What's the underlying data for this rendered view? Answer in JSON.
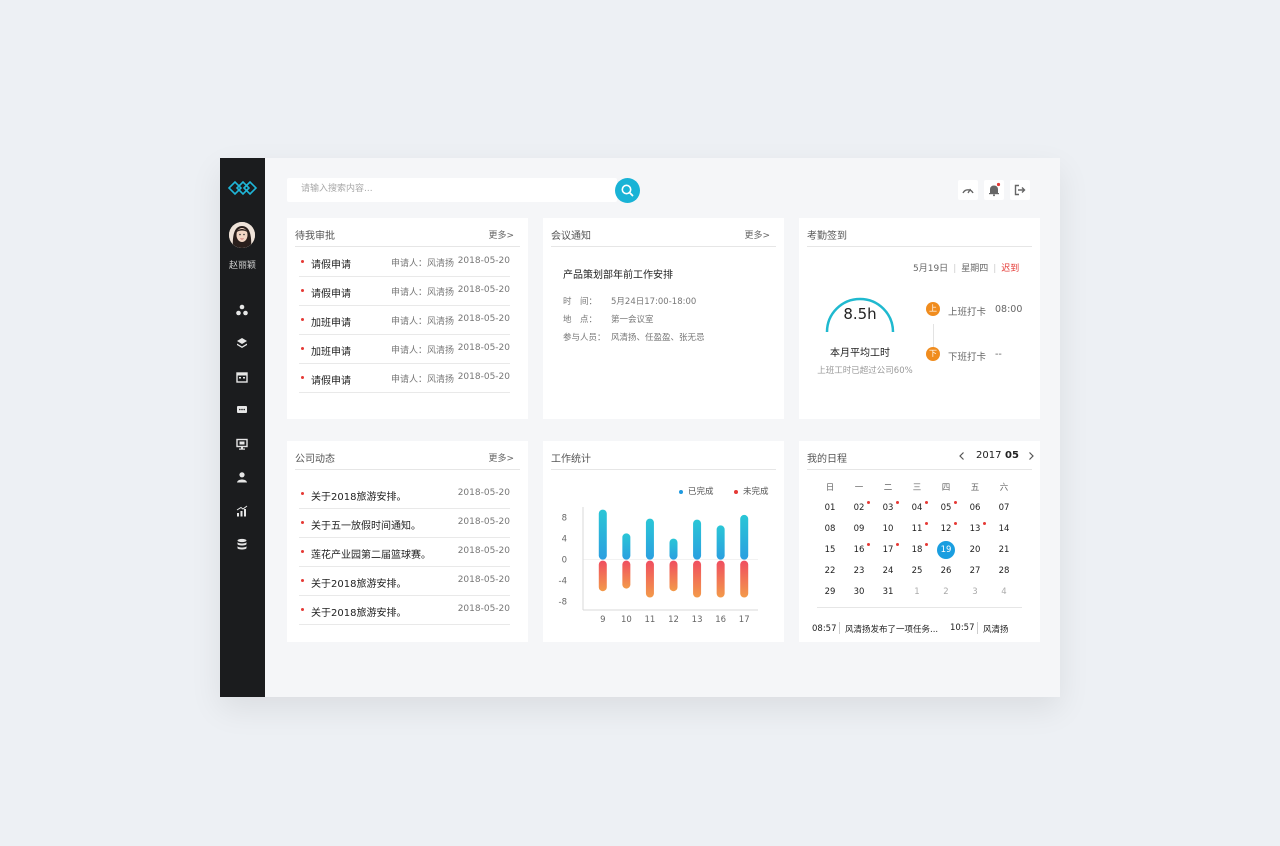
{
  "app": {
    "user_name": "赵丽颖"
  },
  "search": {
    "placeholder": "请输入搜索内容..."
  },
  "colors": {
    "accent": "#19b3d6",
    "sidebar": "#1b1c1e",
    "completed_series": "#2cc3d8",
    "incomplete_series": "#f0645a",
    "alert": "#e53935",
    "orange": "#f08c1e"
  },
  "sidebar": {
    "items": [
      {
        "icon": "cluster-icon"
      },
      {
        "icon": "layers-icon"
      },
      {
        "icon": "calendar-icon"
      },
      {
        "icon": "message-icon"
      },
      {
        "icon": "monitor-icon"
      },
      {
        "icon": "user-icon"
      },
      {
        "icon": "bar-chart-icon"
      },
      {
        "icon": "database-icon"
      }
    ]
  },
  "toolbar": {
    "icons": [
      "dashboard-icon",
      "bell-icon",
      "logout-icon"
    ]
  },
  "approvals": {
    "title": "待我审批",
    "more": "更多>",
    "items": [
      {
        "title": "请假申请",
        "applicant": "申请人：风清扬",
        "date": "2018-05-20"
      },
      {
        "title": "请假申请",
        "applicant": "申请人：风清扬",
        "date": "2018-05-20"
      },
      {
        "title": "加班申请",
        "applicant": "申请人：风清扬",
        "date": "2018-05-20"
      },
      {
        "title": "加班申请",
        "applicant": "申请人：风清扬",
        "date": "2018-05-20"
      },
      {
        "title": "请假申请",
        "applicant": "申请人：风清扬",
        "date": "2018-05-20"
      }
    ]
  },
  "meeting": {
    "title": "会议通知",
    "more": "更多>",
    "name": "产品策划部年前工作安排",
    "time_label": "时　间：",
    "time": "5月24日17:00-18:00",
    "place_label": "地　点：",
    "place": "第一会议室",
    "people_label": "参与人员：",
    "people": "风清扬、任盈盈、张无忌"
  },
  "attendance": {
    "title": "考勤签到",
    "date": "5月19日",
    "weekday": "星期四",
    "status": "迟到",
    "hours": "8.5h",
    "hours_label": "本月平均工时",
    "note": "上班工时已超过公司60%",
    "checkin_badge": "上",
    "checkin_label": "上班打卡",
    "checkin_time": "08:00",
    "checkout_badge": "下",
    "checkout_label": "下班打卡",
    "checkout_time": "--"
  },
  "news": {
    "title": "公司动态",
    "more": "更多>",
    "items": [
      {
        "title": "关于2018旅游安排。",
        "date": "2018-05-20"
      },
      {
        "title": "关于五一放假时间通知。",
        "date": "2018-05-20"
      },
      {
        "title": "莲花产业园第二届篮球赛。",
        "date": "2018-05-20"
      },
      {
        "title": "关于2018旅游安排。",
        "date": "2018-05-20"
      },
      {
        "title": "关于2018旅游安排。",
        "date": "2018-05-20"
      }
    ]
  },
  "work_stats": {
    "title": "工作统计"
  },
  "chart_data": {
    "type": "bar",
    "categories": [
      "9",
      "10",
      "11",
      "12",
      "13",
      "16",
      "17"
    ],
    "series": [
      {
        "name": "已完成",
        "values": [
          9.5,
          5,
          7.8,
          4,
          7.6,
          6.5,
          8.5
        ]
      },
      {
        "name": "未完成",
        "values": [
          -6,
          -5.5,
          -7.2,
          -6,
          -7.2,
          -7.2,
          -7.2
        ]
      }
    ],
    "yticks": [
      "8",
      "4",
      "0",
      "-4",
      "-8"
    ],
    "ylim": [
      -9,
      10
    ],
    "legend_position": "top-right"
  },
  "schedule": {
    "title": "我的日程",
    "year": "2017",
    "month": "05",
    "weekdays": [
      "日",
      "一",
      "二",
      "三",
      "四",
      "五",
      "六"
    ],
    "days": [
      {
        "d": "01"
      },
      {
        "d": "02",
        "mark": true
      },
      {
        "d": "03",
        "mark": true
      },
      {
        "d": "04",
        "mark": true
      },
      {
        "d": "05",
        "mark": true
      },
      {
        "d": "06"
      },
      {
        "d": "07"
      },
      {
        "d": "08"
      },
      {
        "d": "09"
      },
      {
        "d": "10"
      },
      {
        "d": "11",
        "mark": true
      },
      {
        "d": "12",
        "mark": true
      },
      {
        "d": "13",
        "mark": true
      },
      {
        "d": "14"
      },
      {
        "d": "15"
      },
      {
        "d": "16",
        "mark": true
      },
      {
        "d": "17",
        "mark": true
      },
      {
        "d": "18",
        "mark": true
      },
      {
        "d": "19",
        "selected": true
      },
      {
        "d": "20"
      },
      {
        "d": "21"
      },
      {
        "d": "22"
      },
      {
        "d": "23"
      },
      {
        "d": "24"
      },
      {
        "d": "25"
      },
      {
        "d": "26"
      },
      {
        "d": "27"
      },
      {
        "d": "28"
      },
      {
        "d": "29"
      },
      {
        "d": "30"
      },
      {
        "d": "31"
      },
      {
        "d": "1",
        "muted": true
      },
      {
        "d": "2",
        "muted": true
      },
      {
        "d": "3",
        "muted": true
      },
      {
        "d": "4",
        "muted": true
      }
    ],
    "events": [
      {
        "time": "08:57",
        "text": "风清扬发布了一项任务..."
      },
      {
        "time": "10:57",
        "text": "风清扬"
      }
    ]
  }
}
